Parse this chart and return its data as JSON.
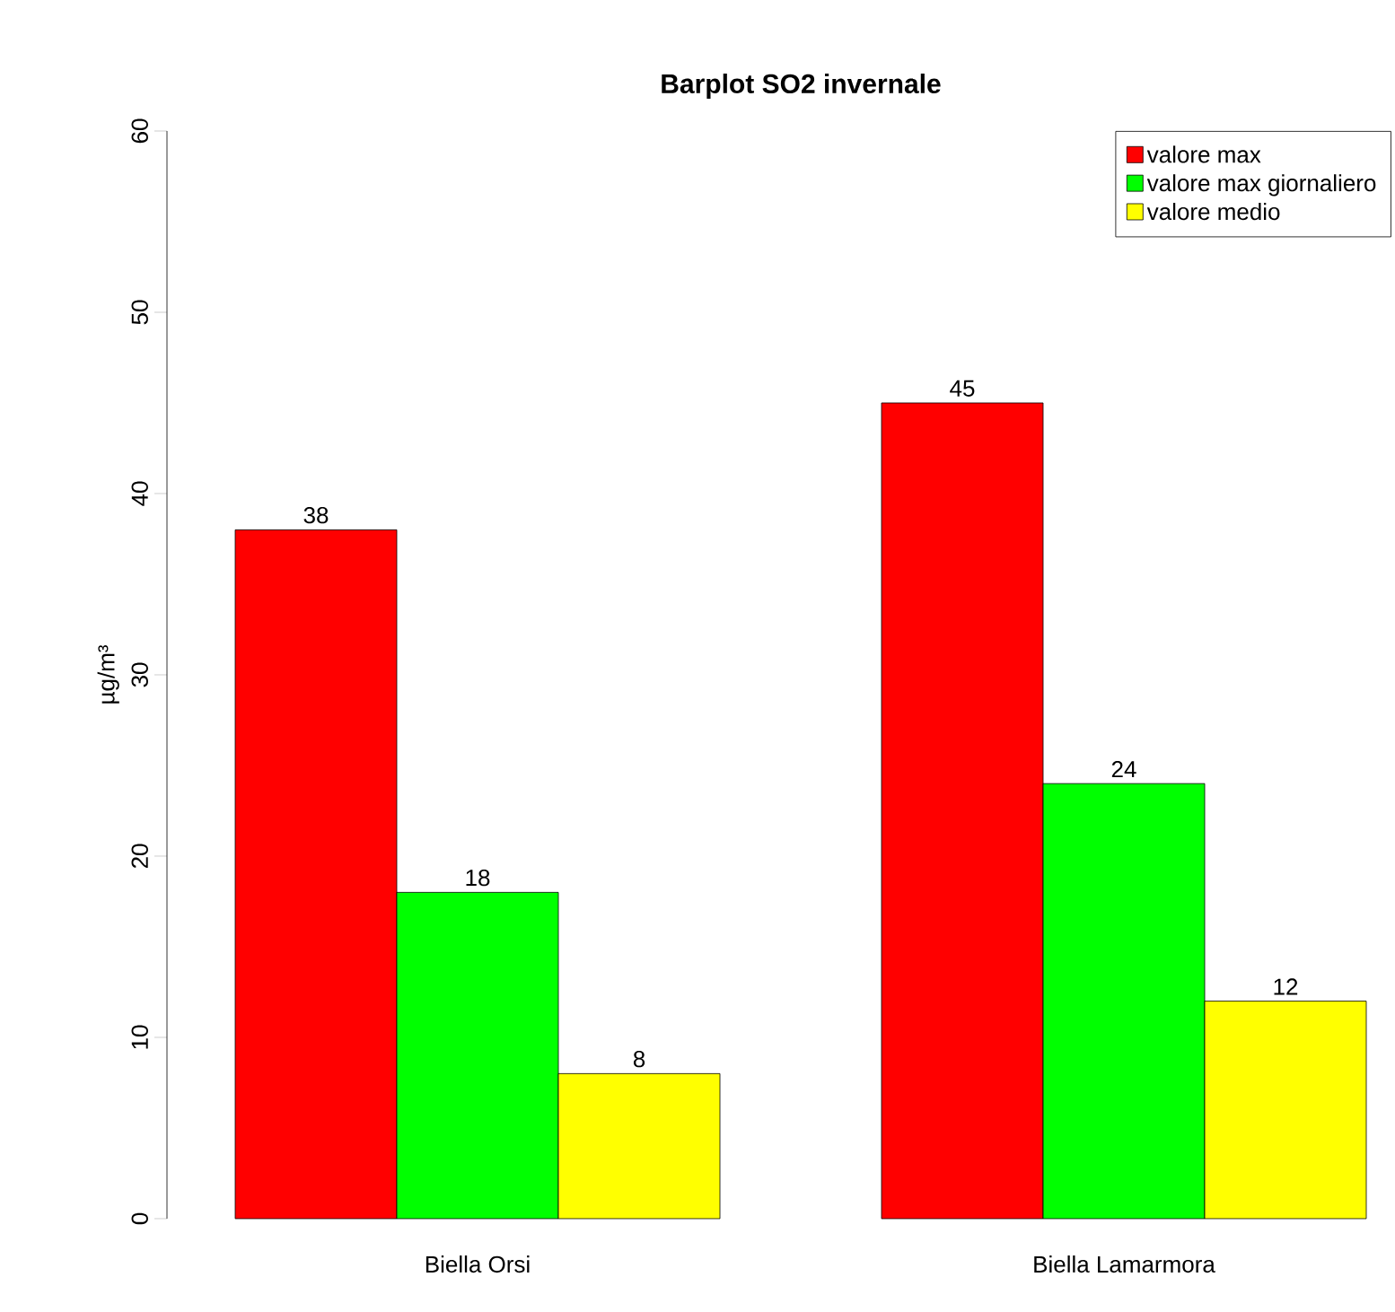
{
  "chart_data": {
    "type": "bar",
    "title": "Barplot SO2 invernale",
    "ylabel": "µg/m³",
    "categories": [
      "Biella Orsi",
      "Biella Lamarmora"
    ],
    "series": [
      {
        "name": "valore max",
        "color": "#ff0000",
        "values": [
          38,
          45
        ]
      },
      {
        "name": "valore max giornaliero",
        "color": "#00ff00",
        "values": [
          18,
          24
        ]
      },
      {
        "name": "valore medio",
        "color": "#ffff00",
        "values": [
          8,
          12
        ]
      }
    ],
    "ylim": [
      0,
      60
    ],
    "yticks": [
      0,
      10,
      20,
      30,
      40,
      50,
      60
    ],
    "data_labels": true,
    "legend": "top right"
  }
}
